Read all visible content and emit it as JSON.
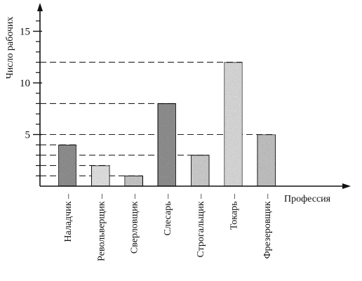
{
  "chart_data": {
    "type": "bar",
    "categories": [
      "Наладчик –",
      "Револьверщик –",
      "Сверловщик –",
      "Слесарь –",
      "Строгальщик –",
      "Токарь –",
      "Фрезеровщик –"
    ],
    "values": [
      4,
      2,
      1,
      8,
      3,
      12,
      5
    ],
    "ylabel": "Число рабочих",
    "xlabel": "Профессия",
    "ylim": [
      0,
      16
    ],
    "yticks": [
      5,
      10,
      15
    ],
    "ytick_labels": [
      "5",
      "10",
      "15"
    ],
    "bar_shades": [
      "#8c8c8c",
      "#dcdcdc",
      "#c2c2c2",
      "#8c8c8c",
      "#c8c8c8",
      "#d4d4d4",
      "#bdbdbd"
    ],
    "reference_lines": "dashed lines from each bar top to the y-axis",
    "grid": false,
    "legend": "none"
  }
}
